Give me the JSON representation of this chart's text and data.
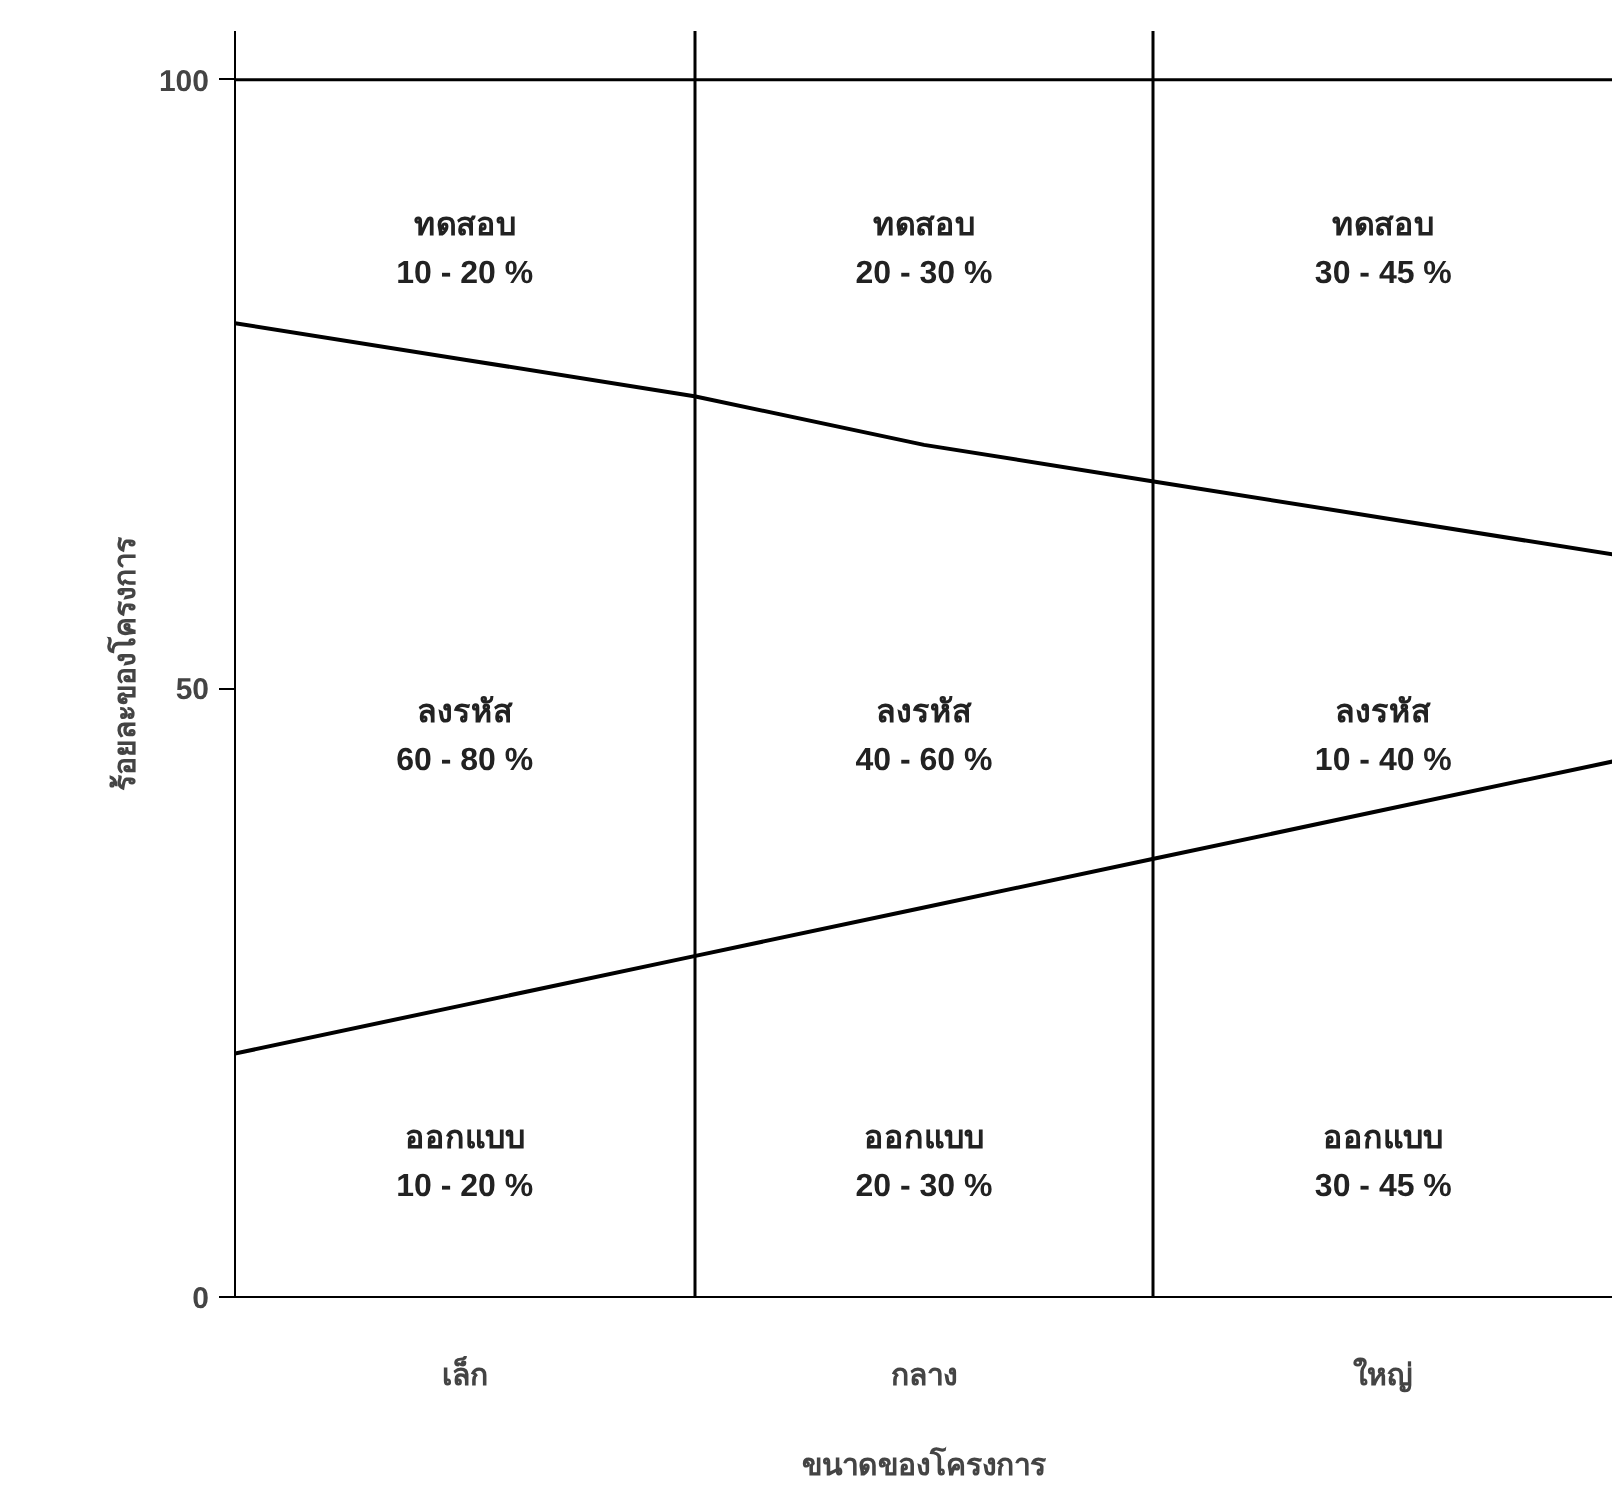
{
  "chart_data": {
    "type": "line",
    "xlabel": "ขนาดของโครงการ",
    "ylabel": "ร้อยละของโครงการ",
    "categories": [
      null,
      "เล็ก",
      null,
      "กลาง",
      null,
      "ใหญ่",
      null
    ],
    "series": [
      {
        "color": "#000000",
        "values": [
          80,
          77,
          74,
          70,
          67,
          64,
          61
        ]
      },
      {
        "color": "#000000",
        "values": [
          20,
          24,
          28,
          32,
          36,
          40,
          44
        ]
      }
    ],
    "ylim": [
      0,
      104
    ],
    "yticks": [
      0,
      50,
      100
    ],
    "ref_lines": [
      {
        "axis": "y",
        "value": 100,
        "color": "#000000"
      }
    ],
    "annotations": [
      "ทดสอบ",
      "10 - 20 %",
      "ทดสอบ",
      "20 - 30 %",
      "ทดสอบ",
      "30 - 45 %",
      "ลงรหัส",
      "60 - 80 %",
      "ลงรหัส",
      "40 - 60 %",
      "ลงรหัส",
      "10 - 40 %",
      "ออกแบบ",
      "10 - 20 %",
      "ออกแบบ",
      "20 - 30 %",
      "ออกแบบ",
      "30 - 45 %"
    ],
    "grid": "x",
    "marker": "none",
    "line_style": "solid"
  }
}
